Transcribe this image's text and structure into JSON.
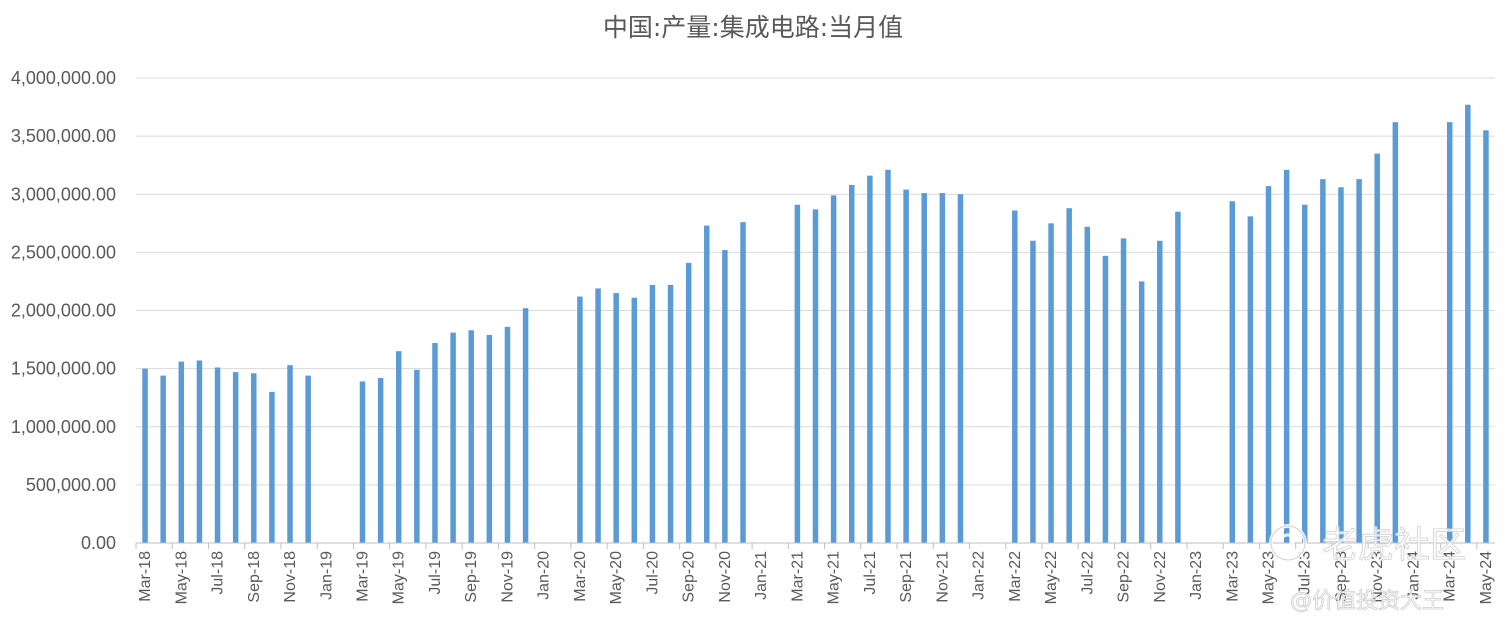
{
  "chart_data": {
    "type": "bar",
    "title": "中国:产量:集成电路:当月值",
    "xlabel": "",
    "ylabel": "",
    "ylim": [
      0,
      4000000
    ],
    "yticks": [
      0,
      500000,
      1000000,
      1500000,
      2000000,
      2500000,
      3000000,
      3500000,
      4000000
    ],
    "ytick_labels": [
      "0.00",
      "500,000.00",
      "1,000,000.00",
      "1,500,000.00",
      "2,000,000.00",
      "2,500,000.00",
      "3,000,000.00",
      "3,500,000.00",
      "4,000,000.00"
    ],
    "grid": true,
    "legend": "none",
    "bar_color": "#5b9bd5",
    "categories": [
      "Mar-18",
      "Apr-18",
      "May-18",
      "Jun-18",
      "Jul-18",
      "Aug-18",
      "Sep-18",
      "Oct-18",
      "Nov-18",
      "Dec-18",
      "Jan-19",
      "Feb-19",
      "Mar-19",
      "Apr-19",
      "May-19",
      "Jun-19",
      "Jul-19",
      "Aug-19",
      "Sep-19",
      "Oct-19",
      "Nov-19",
      "Dec-19",
      "Jan-20",
      "Feb-20",
      "Mar-20",
      "Apr-20",
      "May-20",
      "Jun-20",
      "Jul-20",
      "Aug-20",
      "Sep-20",
      "Oct-20",
      "Nov-20",
      "Dec-20",
      "Jan-21",
      "Feb-21",
      "Mar-21",
      "Apr-21",
      "May-21",
      "Jun-21",
      "Jul-21",
      "Aug-21",
      "Sep-21",
      "Oct-21",
      "Nov-21",
      "Dec-21",
      "Jan-22",
      "Feb-22",
      "Mar-22",
      "Apr-22",
      "May-22",
      "Jun-22",
      "Jul-22",
      "Aug-22",
      "Sep-22",
      "Oct-22",
      "Nov-22",
      "Dec-22",
      "Jan-23",
      "Feb-23",
      "Mar-23",
      "Apr-23",
      "May-23",
      "Jun-23",
      "Jul-23",
      "Aug-23",
      "Sep-23",
      "Oct-23",
      "Nov-23",
      "Dec-23",
      "Jan-24",
      "Feb-24",
      "Mar-24",
      "Apr-24",
      "May-24"
    ],
    "x_tick_labels": [
      "Mar-18",
      "May-18",
      "Jul-18",
      "Sep-18",
      "Nov-18",
      "Jan-19",
      "Mar-19",
      "May-19",
      "Jul-19",
      "Sep-19",
      "Nov-19",
      "Jan-20",
      "Mar-20",
      "May-20",
      "Jul-20",
      "Sep-20",
      "Nov-20",
      "Jan-21",
      "Mar-21",
      "May-21",
      "Jul-21",
      "Sep-21",
      "Nov-21",
      "Jan-22",
      "Mar-22",
      "May-22",
      "Jul-22",
      "Sep-22",
      "Nov-22",
      "Jan-23",
      "Mar-23",
      "May-23",
      "Jul-23",
      "Sep-23",
      "Nov-23",
      "Jan-24",
      "Mar-24",
      "May-24"
    ],
    "values": [
      1500000,
      1440000,
      1560000,
      1570000,
      1510000,
      1470000,
      1460000,
      1300000,
      1530000,
      1440000,
      null,
      null,
      1390000,
      1420000,
      1650000,
      1490000,
      1720000,
      1810000,
      1830000,
      1790000,
      1860000,
      2020000,
      null,
      null,
      2120000,
      2190000,
      2150000,
      2110000,
      2220000,
      2220000,
      2410000,
      2730000,
      2520000,
      2760000,
      null,
      null,
      2910000,
      2870000,
      2990000,
      3080000,
      3160000,
      3210000,
      3040000,
      3010000,
      3010000,
      3000000,
      null,
      null,
      2860000,
      2600000,
      2750000,
      2880000,
      2720000,
      2470000,
      2620000,
      2250000,
      2600000,
      2850000,
      null,
      null,
      2940000,
      2810000,
      3070000,
      3210000,
      2910000,
      3130000,
      3060000,
      3130000,
      3350000,
      3620000,
      null,
      null,
      3620000,
      3770000,
      3550000
    ]
  },
  "watermark": {
    "brand": "老虎社区",
    "author": "@价值投资大王"
  }
}
